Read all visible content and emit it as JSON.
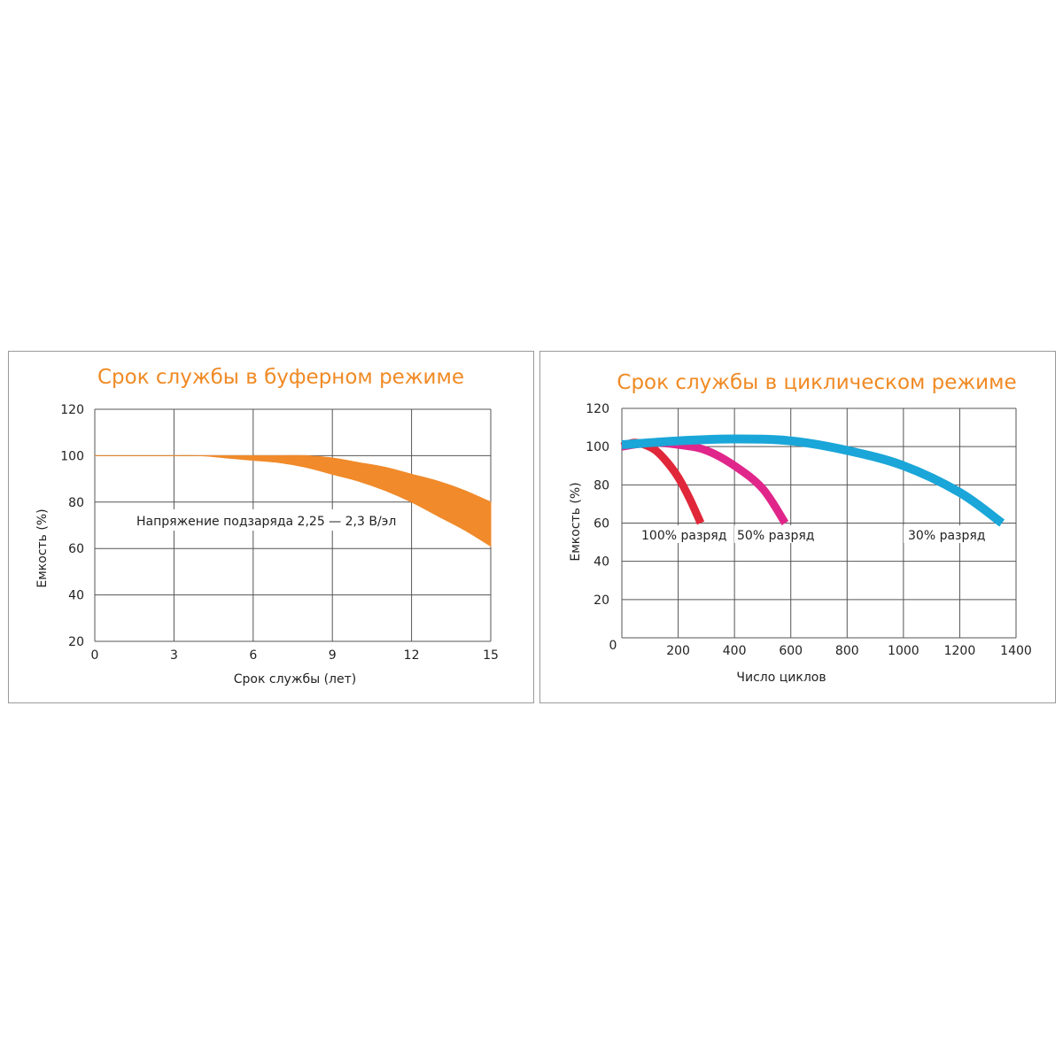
{
  "colors": {
    "title": "#f08a24",
    "grid": "#555555",
    "buffer_band": "#f08a2a",
    "discharge_100": "#e0283a",
    "discharge_50": "#e0268a",
    "discharge_30": "#1aa6d8"
  },
  "chart_data": [
    {
      "type": "area",
      "title": "Срок службы в буферном режиме",
      "xlabel": "Срок службы (лет)",
      "ylabel": "Емкость (%)",
      "xlim": [
        0,
        15
      ],
      "ylim": [
        20,
        120
      ],
      "xticks": [
        "0",
        "3",
        "6",
        "9",
        "12",
        "15"
      ],
      "yticks": [
        "120",
        "100",
        "80",
        "60",
        "40",
        "20"
      ],
      "grid": true,
      "annotation": "Напряжение подзаряда 2,25 — 2,3 В/эл",
      "series": [
        {
          "x": [
            0,
            1,
            2,
            3,
            4,
            5,
            6,
            7,
            8,
            9,
            10,
            11,
            12,
            13,
            14,
            15
          ],
          "upper": [
            100,
            100,
            100,
            100,
            100,
            100,
            100,
            100,
            100,
            99,
            97,
            95,
            92,
            89,
            85,
            80
          ],
          "lower": [
            100,
            100,
            100,
            100,
            100,
            99,
            98,
            97,
            95,
            92,
            89,
            85,
            80,
            74,
            68,
            61
          ]
        }
      ]
    },
    {
      "type": "line",
      "title": "Срок службы в циклическом режиме",
      "xlabel": "Число циклов",
      "ylabel": "Емкость (%)",
      "xlim": [
        0,
        1400
      ],
      "ylim": [
        0,
        120
      ],
      "xticks": [
        "0",
        "200",
        "400",
        "600",
        "800",
        "1000",
        "1200",
        "1400"
      ],
      "yticks": [
        "120",
        "100",
        "80",
        "60",
        "40",
        "20"
      ],
      "grid": true,
      "series": [
        {
          "name": "100% разряд",
          "x": [
            0,
            40,
            80,
            120,
            160,
            200,
            240,
            280
          ],
          "y": [
            100,
            102,
            101,
            98,
            92,
            84,
            73,
            60
          ]
        },
        {
          "name": "50% разряд",
          "x": [
            0,
            100,
            200,
            300,
            400,
            500,
            580
          ],
          "y": [
            100,
            102,
            101,
            98,
            90,
            78,
            60
          ]
        },
        {
          "name": "30% разряд",
          "x": [
            0,
            200,
            400,
            600,
            800,
            1000,
            1200,
            1350
          ],
          "y": [
            101,
            103,
            104,
            103,
            98,
            90,
            76,
            60
          ]
        }
      ]
    }
  ]
}
